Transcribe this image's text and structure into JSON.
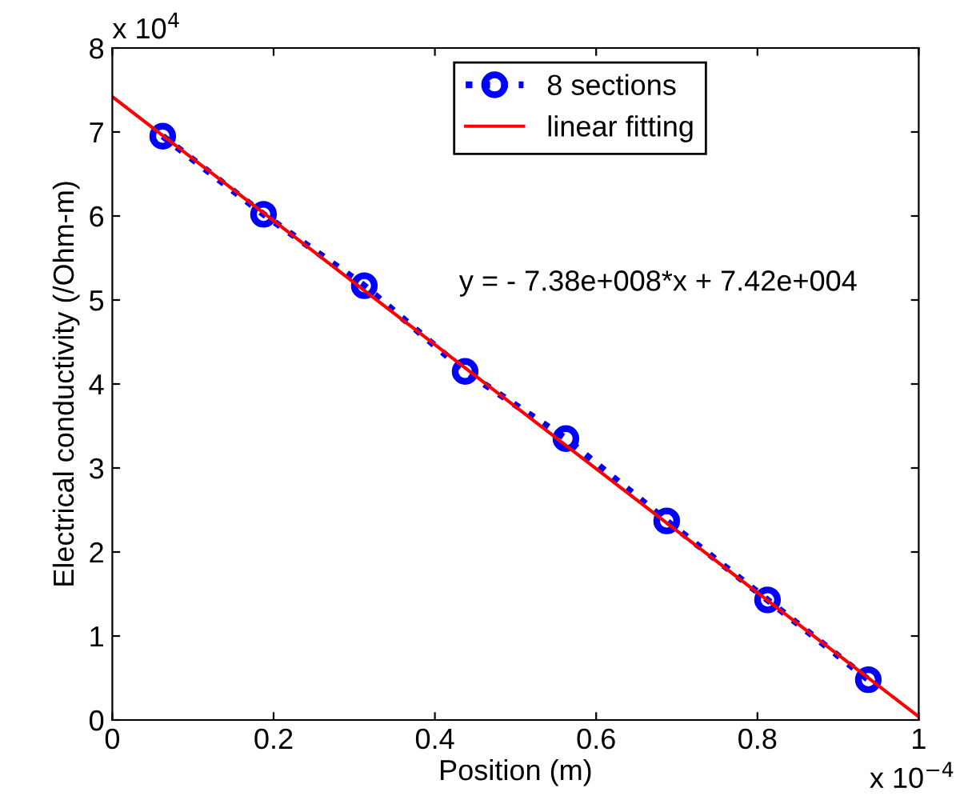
{
  "chart_data": {
    "type": "line",
    "xlabel": "Position (m)",
    "ylabel": "Electrical conductivity (/Ohm-m)",
    "xlim": [
      0,
      1
    ],
    "xticks": [
      0,
      0.2,
      0.4,
      0.6,
      0.8,
      1
    ],
    "ylim": [
      0,
      8
    ],
    "yticks": [
      0,
      1,
      2,
      3,
      4,
      5,
      6,
      7,
      8
    ],
    "grid": false,
    "legend": "top",
    "series": [
      {
        "name": "8 sections",
        "color": "#0000ff",
        "marker": "circle",
        "line_style": "dotted",
        "x": [
          0.0625,
          0.1875,
          0.3125,
          0.4375,
          0.5625,
          0.6875,
          0.8125,
          0.9375
        ],
        "values": [
          6.95,
          6.02,
          5.17,
          4.15,
          3.35,
          2.37,
          1.43,
          0.48
        ]
      },
      {
        "name": "linear fitting",
        "color": "#ff0000",
        "marker": "none",
        "line_style": "solid",
        "x": [
          0,
          1
        ],
        "values": [
          7.42,
          0.04
        ]
      }
    ],
    "annotations": [
      "y = - 7.38e+008*x + 7.42e+004",
      "x 10$^{4}$",
      "x 10$^{−4}$"
    ]
  }
}
